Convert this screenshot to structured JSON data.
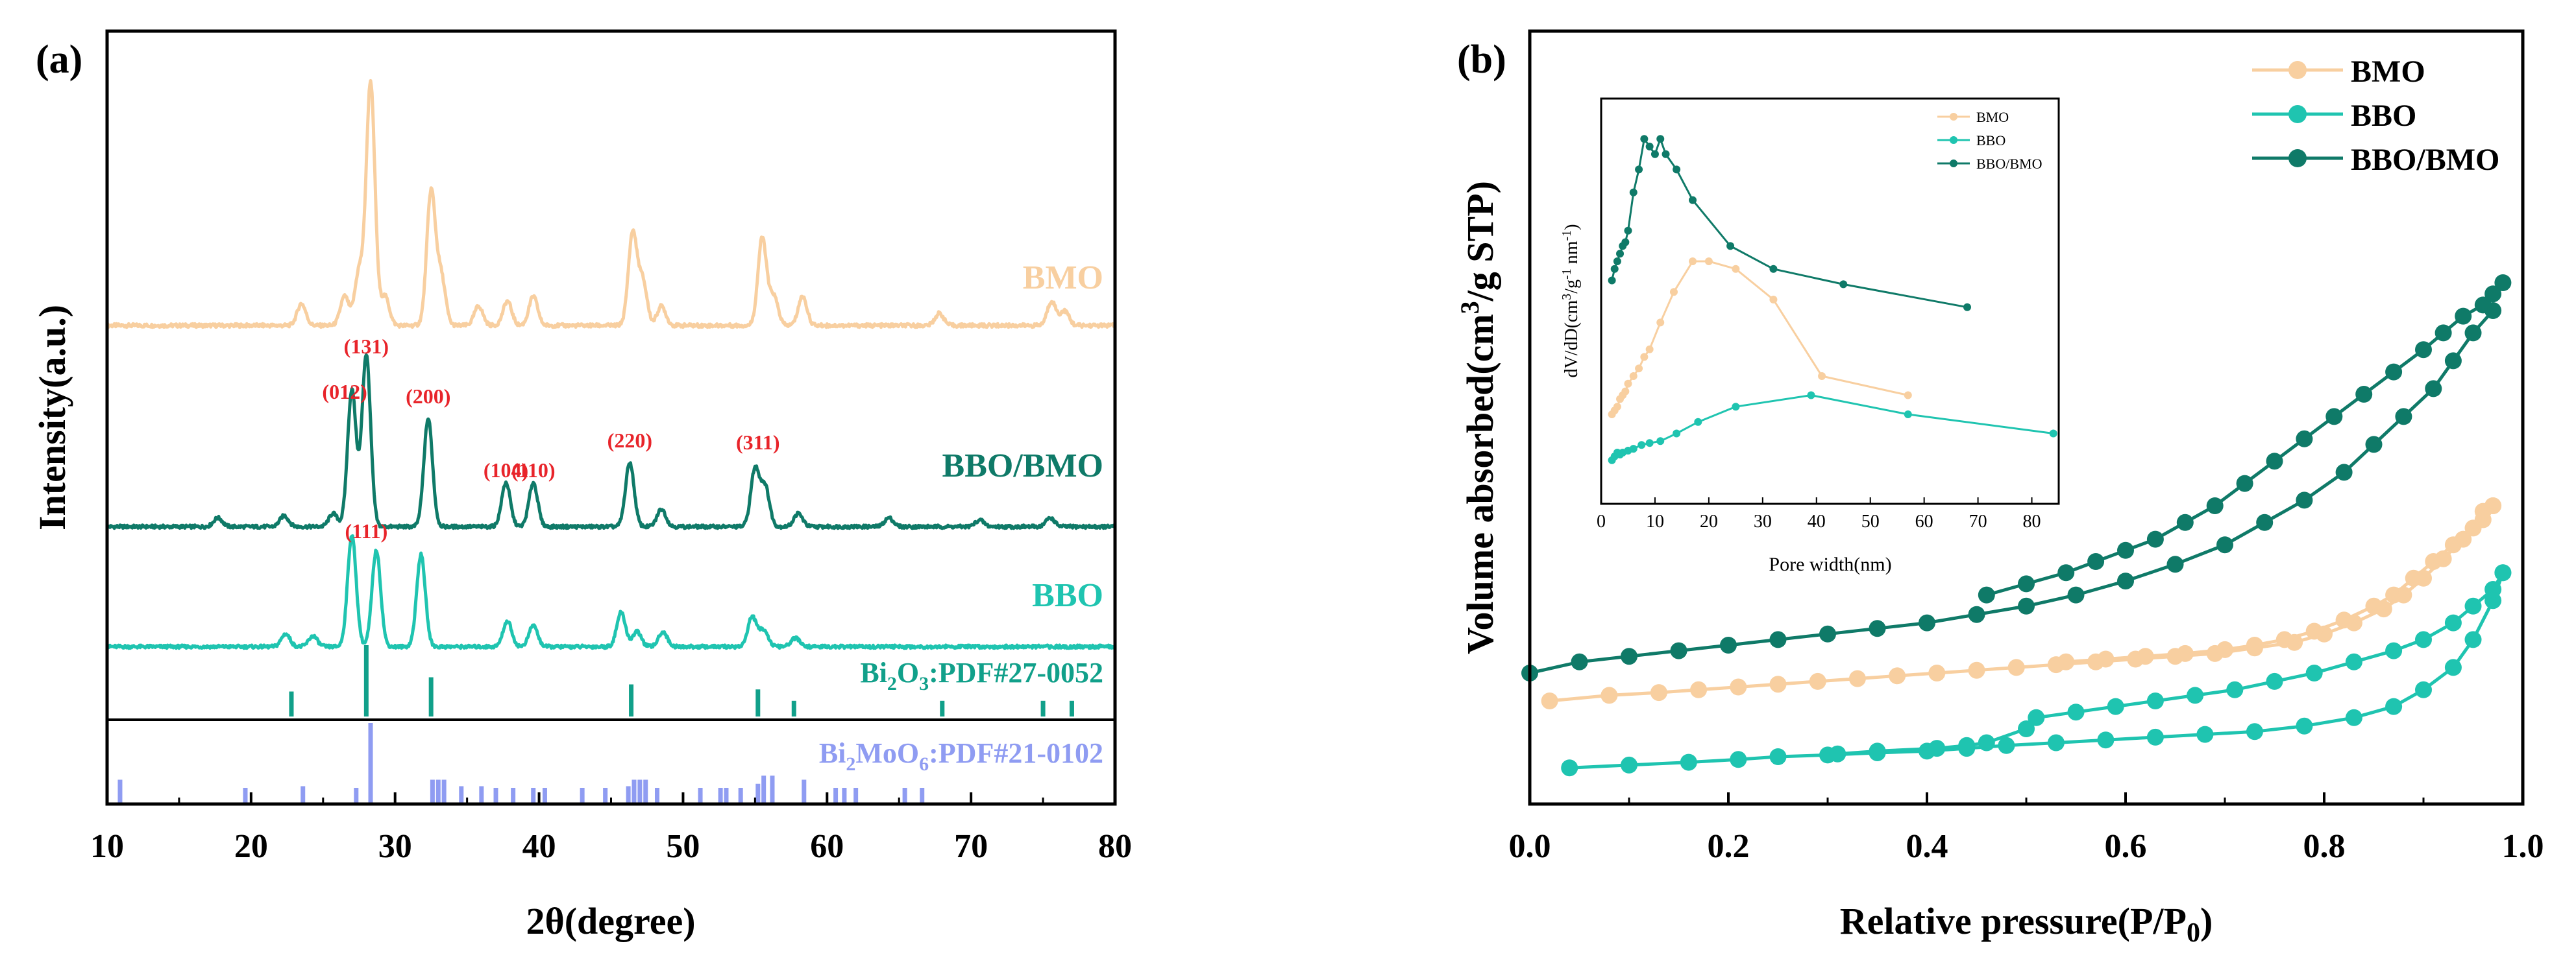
{
  "colors": {
    "bmo": "#f8cfa0",
    "bbo": "#1fc4b0",
    "bbo_bmo": "#0f7a68",
    "pdf_bi2o3": "#11a08a",
    "pdf_bi2moo6": "#8f9cf2",
    "hkl_label": "#e8242a",
    "axis": "#000000"
  },
  "chart_data": [
    {
      "panel": "(a)",
      "type": "line",
      "xlabel": "2θ(degree)",
      "ylabel": "Intensity(a.u.)",
      "xlim": [
        10,
        80
      ],
      "xticks": [
        10,
        20,
        30,
        40,
        50,
        60,
        70,
        80
      ],
      "series": [
        {
          "name": "BMO",
          "color_key": "bmo",
          "baseline": 0,
          "peaks": [
            [
              23.5,
              0.09
            ],
            [
              26.5,
              0.12
            ],
            [
              27.5,
              0.22
            ],
            [
              28.3,
              1.0
            ],
            [
              29.3,
              0.12
            ],
            [
              32.5,
              0.55
            ],
            [
              33.2,
              0.2
            ],
            [
              35.8,
              0.08
            ],
            [
              37.8,
              0.1
            ],
            [
              39.6,
              0.12
            ],
            [
              46.5,
              0.38
            ],
            [
              47.2,
              0.18
            ],
            [
              48.5,
              0.08
            ],
            [
              55.5,
              0.36
            ],
            [
              56.3,
              0.12
            ],
            [
              58.3,
              0.12
            ],
            [
              67.8,
              0.05
            ],
            [
              75.6,
              0.1
            ],
            [
              76.5,
              0.06
            ]
          ]
        },
        {
          "name": "BBO/BMO",
          "color_key": "bbo_bmo",
          "baseline": 0,
          "peaks": [
            [
              17.7,
              0.04
            ],
            [
              22.3,
              0.05
            ],
            [
              25.7,
              0.06
            ],
            [
              27.0,
              0.62
            ],
            [
              28.0,
              0.78
            ],
            [
              32.3,
              0.49
            ],
            [
              37.7,
              0.2
            ],
            [
              39.6,
              0.2
            ],
            [
              46.3,
              0.29
            ],
            [
              48.5,
              0.08
            ],
            [
              55.0,
              0.26
            ],
            [
              55.7,
              0.18
            ],
            [
              58.0,
              0.06
            ],
            [
              64.3,
              0.04
            ],
            [
              70.6,
              0.03
            ],
            [
              75.5,
              0.04
            ]
          ]
        },
        {
          "name": "BBO",
          "color_key": "bbo",
          "baseline": 0,
          "peaks": [
            [
              22.4,
              0.06
            ],
            [
              24.3,
              0.05
            ],
            [
              27.0,
              0.52
            ],
            [
              28.7,
              0.45
            ],
            [
              31.8,
              0.43
            ],
            [
              37.8,
              0.12
            ],
            [
              39.6,
              0.1
            ],
            [
              45.7,
              0.16
            ],
            [
              46.8,
              0.07
            ],
            [
              48.6,
              0.07
            ],
            [
              54.8,
              0.14
            ],
            [
              55.6,
              0.08
            ],
            [
              57.8,
              0.04
            ]
          ]
        }
      ],
      "peak_labels": [
        "(131)",
        "(012)",
        "(200)",
        "(104)",
        "(110)",
        "(220)",
        "(311)",
        "(111)"
      ],
      "peak_label_x": [
        28.0,
        26.5,
        32.3,
        37.7,
        39.6,
        46.3,
        55.2,
        28.0
      ],
      "reference_patterns": [
        {
          "name_parts": [
            "Bi",
            "2",
            "O",
            "3",
            ":PDF#27-0052"
          ],
          "color_key": "pdf_bi2o3",
          "lines": [
            [
              22.8,
              0.35
            ],
            [
              28.0,
              1.0
            ],
            [
              32.5,
              0.55
            ],
            [
              46.4,
              0.45
            ],
            [
              55.2,
              0.38
            ],
            [
              57.7,
              0.22
            ],
            [
              68.0,
              0.22
            ],
            [
              75.0,
              0.22
            ],
            [
              77.0,
              0.22
            ]
          ]
        },
        {
          "name_parts": [
            "Bi",
            "2",
            "MoO",
            "6",
            ":PDF#21-0102"
          ],
          "color_key": "pdf_bi2moo6",
          "lines": [
            [
              10.9,
              0.3
            ],
            [
              19.6,
              0.2
            ],
            [
              23.6,
              0.22
            ],
            [
              27.3,
              0.2
            ],
            [
              28.3,
              1.0
            ],
            [
              32.6,
              0.3
            ],
            [
              33.0,
              0.3
            ],
            [
              33.4,
              0.3
            ],
            [
              34.6,
              0.22
            ],
            [
              36.0,
              0.22
            ],
            [
              37.0,
              0.2
            ],
            [
              38.2,
              0.2
            ],
            [
              39.6,
              0.2
            ],
            [
              40.4,
              0.2
            ],
            [
              43.0,
              0.2
            ],
            [
              44.6,
              0.2
            ],
            [
              46.2,
              0.22
            ],
            [
              46.6,
              0.3
            ],
            [
              47.0,
              0.3
            ],
            [
              47.4,
              0.3
            ],
            [
              48.2,
              0.2
            ],
            [
              51.2,
              0.2
            ],
            [
              52.6,
              0.2
            ],
            [
              53.0,
              0.2
            ],
            [
              54.0,
              0.2
            ],
            [
              55.2,
              0.25
            ],
            [
              55.6,
              0.35
            ],
            [
              56.2,
              0.35
            ],
            [
              58.4,
              0.3
            ],
            [
              60.6,
              0.2
            ],
            [
              61.2,
              0.2
            ],
            [
              62.0,
              0.2
            ],
            [
              65.4,
              0.2
            ],
            [
              66.6,
              0.2
            ]
          ]
        }
      ]
    },
    {
      "panel": "(b)",
      "type": "scatter",
      "xlabel_parts": [
        "Relative pressure(P/P",
        "0",
        ")"
      ],
      "ylabel_parts": [
        "Volume absorbed(cm",
        "3",
        "/g STP)"
      ],
      "xlim": [
        0,
        1.0
      ],
      "xticks": [
        0.0,
        0.2,
        0.4,
        0.6,
        0.8,
        1.0
      ],
      "xtick_labels": [
        "0.0",
        "0.2",
        "0.4",
        "0.6",
        "0.8",
        "1.0"
      ],
      "ylim": [
        0,
        100
      ],
      "series": [
        {
          "name": "BMO",
          "color_key": "bmo",
          "adsorption": {
            "x": [
              0.02,
              0.08,
              0.13,
              0.17,
              0.21,
              0.25,
              0.29,
              0.33,
              0.37,
              0.41,
              0.45,
              0.49,
              0.53,
              0.57,
              0.61,
              0.65,
              0.69,
              0.73,
              0.77,
              0.8,
              0.83,
              0.86,
              0.88,
              0.9,
              0.92,
              0.94,
              0.96,
              0.97
            ],
            "y": [
              15,
              16,
              16.5,
              17,
              17.5,
              18,
              18.5,
              19,
              19.5,
              20,
              20.5,
              21,
              21.5,
              22,
              22.5,
              23,
              23.5,
              24.5,
              25.5,
              27,
              29,
              31.5,
              34,
              37,
              40.5,
              44,
              47.5,
              50
            ]
          },
          "desorption": {
            "x": [
              0.97,
              0.96,
              0.95,
              0.93,
              0.91,
              0.89,
              0.87,
              0.85,
              0.82,
              0.79,
              0.76,
              0.73,
              0.7,
              0.66,
              0.62,
              0.58,
              0.54
            ],
            "y": [
              50,
              49,
              46,
              43,
              40,
              37,
              34,
              32,
              29.5,
              27.5,
              26,
              25,
              24.2,
              23.5,
              23,
              22.5,
              22
            ]
          }
        },
        {
          "name": "BBO",
          "color_key": "bbo",
          "adsorption": {
            "x": [
              0.04,
              0.1,
              0.16,
              0.21,
              0.25,
              0.3,
              0.35,
              0.4,
              0.44,
              0.48,
              0.53,
              0.58,
              0.63,
              0.68,
              0.73,
              0.78,
              0.83,
              0.87,
              0.9,
              0.93,
              0.95,
              0.97,
              0.98
            ],
            "y": [
              3,
              3.5,
              4,
              4.5,
              5,
              5.3,
              5.7,
              6,
              6.5,
              7,
              7.5,
              8,
              8.5,
              9,
              9.5,
              10.5,
              12,
              14,
              17,
              21,
              26,
              33,
              38
            ]
          },
          "desorption": {
            "x": [
              0.98,
              0.97,
              0.95,
              0.93,
              0.9,
              0.87,
              0.83,
              0.79,
              0.75,
              0.71,
              0.67,
              0.63,
              0.59,
              0.55,
              0.51,
              0.5,
              0.46,
              0.44,
              0.41,
              0.35,
              0.31
            ],
            "y": [
              38,
              35,
              32,
              29,
              26,
              24,
              22,
              20,
              18.5,
              17,
              16,
              15,
              14,
              13,
              12,
              10,
              7.5,
              7,
              6.5,
              6,
              5.5
            ]
          }
        },
        {
          "name": "BBO/BMO",
          "color_key": "bbo_bmo",
          "adsorption": {
            "x": [
              0.0,
              0.05,
              0.1,
              0.15,
              0.2,
              0.25,
              0.3,
              0.35,
              0.4,
              0.45,
              0.5,
              0.55,
              0.6,
              0.65,
              0.7,
              0.74,
              0.78,
              0.82,
              0.85,
              0.88,
              0.91,
              0.93,
              0.95,
              0.97
            ],
            "y": [
              20,
              22,
              23,
              24,
              25,
              26,
              27,
              28,
              29,
              30.5,
              32,
              34,
              36.5,
              39.5,
              43,
              47,
              51,
              56,
              61,
              66,
              71,
              76,
              81,
              85
            ]
          },
          "desorption": {
            "x": [
              0.98,
              0.97,
              0.96,
              0.94,
              0.92,
              0.9,
              0.87,
              0.84,
              0.81,
              0.78,
              0.75,
              0.72,
              0.69,
              0.66,
              0.63,
              0.6,
              0.57,
              0.54,
              0.5,
              0.46
            ],
            "y": [
              90,
              88,
              86,
              84,
              81,
              78,
              74,
              70,
              66,
              62,
              58,
              54,
              50,
              47,
              44,
              42,
              40,
              38,
              36,
              34
            ]
          }
        }
      ],
      "inset": {
        "type": "line",
        "xlabel": "Pore width(nm)",
        "ylabel_parts": [
          "dV/dD(cm",
          "3",
          "/g",
          "-1",
          " nm",
          "-1",
          ")"
        ],
        "xlim": [
          0,
          85
        ],
        "xticks": [
          0,
          10,
          20,
          30,
          40,
          50,
          60,
          70,
          80
        ],
        "ylim": [
          0,
          100
        ],
        "series": [
          {
            "name": "BMO",
            "color_key": "bmo",
            "x": [
              2.0,
              2.5,
              3.0,
              3.5,
              4.0,
              4.5,
              5.0,
              6.0,
              7.0,
              8.0,
              9.0,
              11.0,
              13.5,
              17.0,
              20.0,
              25.0,
              32.0,
              41.0,
              57.0
            ],
            "y": [
              20,
              21,
              22,
              24,
              25,
              26,
              28,
              30,
              32,
              35,
              37,
              44,
              52,
              60,
              60,
              58,
              50,
              30,
              25
            ]
          },
          {
            "name": "BBO",
            "color_key": "bbo",
            "x": [
              2.0,
              2.5,
              3.0,
              3.5,
              4.0,
              5.0,
              6.0,
              7.5,
              9.0,
              11.0,
              14.0,
              18.0,
              25.0,
              39.0,
              57.0,
              84.0
            ],
            "y": [
              8,
              9,
              10,
              9.5,
              10,
              10.5,
              11,
              12,
              12.5,
              13,
              15,
              18,
              22,
              25,
              20,
              15
            ]
          },
          {
            "name": "BBO/BMO",
            "color_key": "bbo_bmo",
            "x": [
              2.0,
              2.5,
              3.0,
              3.5,
              4.0,
              4.5,
              5.0,
              6.0,
              7.0,
              8.0,
              9.0,
              10.0,
              11.0,
              12.0,
              14.0,
              17.0,
              24.0,
              32.0,
              45.0,
              68.0
            ],
            "y": [
              55,
              58,
              60,
              62,
              64,
              65,
              68,
              78,
              84,
              92,
              90,
              88,
              92,
              88,
              84,
              76,
              64,
              58,
              54,
              48
            ]
          }
        ]
      }
    }
  ]
}
